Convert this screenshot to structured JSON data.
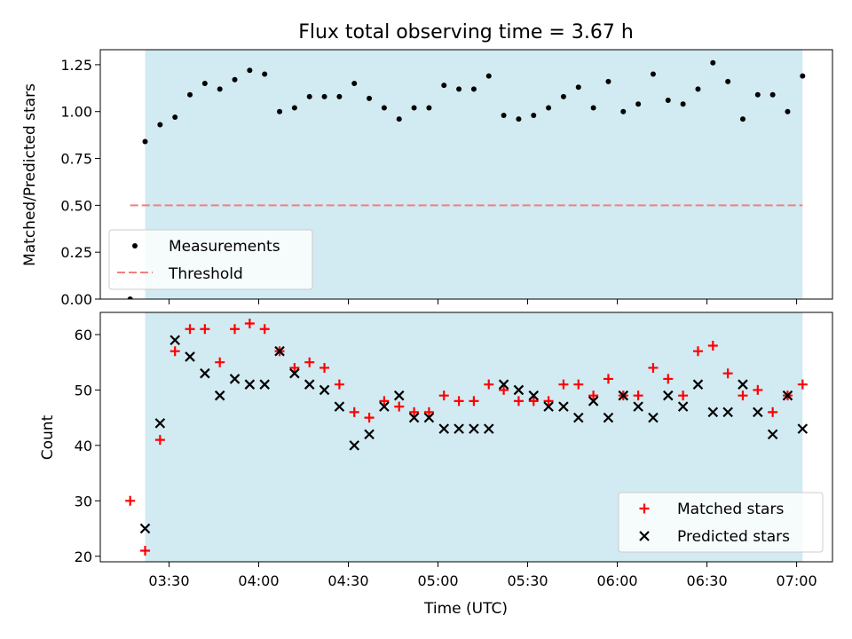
{
  "chart_data": [
    {
      "type": "scatter",
      "title": "Flux total observing time = 3.67 h",
      "ylabel": "Matched/Predicted stars",
      "xlabel": "",
      "ylim": [
        0.0,
        1.33
      ],
      "yticks": [
        0.0,
        0.25,
        0.5,
        0.75,
        1.0,
        1.25
      ],
      "ytick_labels": [
        "0.00",
        "0.25",
        "0.50",
        "0.75",
        "1.00",
        "1.25"
      ],
      "grid": false,
      "legend_placement": "lower-left",
      "shaded_interval": {
        "start": "03:22",
        "end": "07:02",
        "color": "#add8e6"
      },
      "series": [
        {
          "name": "Measurements",
          "marker": "dot",
          "color": "#000000",
          "x": [
            "03:17",
            "03:22",
            "03:27",
            "03:32",
            "03:37",
            "03:42",
            "03:47",
            "03:52",
            "03:57",
            "04:02",
            "04:07",
            "04:12",
            "04:17",
            "04:22",
            "04:27",
            "04:32",
            "04:37",
            "04:42",
            "04:47",
            "04:52",
            "04:57",
            "05:02",
            "05:07",
            "05:12",
            "05:17",
            "05:22",
            "05:27",
            "05:32",
            "05:37",
            "05:42",
            "05:47",
            "05:52",
            "05:57",
            "06:02",
            "06:07",
            "06:12",
            "06:17",
            "06:22",
            "06:27",
            "06:32",
            "06:37",
            "06:42",
            "06:47",
            "06:52",
            "06:57",
            "07:02"
          ],
          "y": [
            0.0,
            0.84,
            0.93,
            0.97,
            1.09,
            1.15,
            1.12,
            1.17,
            1.22,
            1.2,
            1.0,
            1.02,
            1.08,
            1.08,
            1.08,
            1.15,
            1.07,
            1.02,
            0.96,
            1.02,
            1.02,
            1.14,
            1.12,
            1.12,
            1.19,
            0.98,
            0.96,
            0.98,
            1.02,
            1.08,
            1.13,
            1.02,
            1.16,
            1.0,
            1.04,
            1.2,
            1.06,
            1.04,
            1.12,
            1.26,
            1.16,
            0.96,
            1.09,
            1.09,
            1.0,
            1.19
          ]
        },
        {
          "name": "Threshold",
          "marker": "dashed-line",
          "color": "#f08080",
          "x": [
            "03:17",
            "07:02"
          ],
          "y": [
            0.5,
            0.5
          ]
        }
      ]
    },
    {
      "type": "scatter",
      "title": "",
      "xlabel": "Time (UTC)",
      "ylabel": "Count",
      "ylim": [
        19,
        64
      ],
      "yticks": [
        20,
        30,
        40,
        50,
        60
      ],
      "ytick_labels": [
        "20",
        "30",
        "40",
        "50",
        "60"
      ],
      "xlim": [
        "03:07",
        "07:12"
      ],
      "xticks": [
        "03:30",
        "04:00",
        "04:30",
        "05:00",
        "05:30",
        "06:00",
        "06:30",
        "07:00"
      ],
      "grid": false,
      "legend_placement": "lower-right",
      "shaded_interval": {
        "start": "03:22",
        "end": "07:02",
        "color": "#add8e6"
      },
      "series": [
        {
          "name": "Matched stars",
          "marker": "plus",
          "color": "#ff0000",
          "x": [
            "03:17",
            "03:22",
            "03:27",
            "03:32",
            "03:37",
            "03:42",
            "03:47",
            "03:52",
            "03:57",
            "04:02",
            "04:07",
            "04:12",
            "04:17",
            "04:22",
            "04:27",
            "04:32",
            "04:37",
            "04:42",
            "04:47",
            "04:52",
            "04:57",
            "05:02",
            "05:07",
            "05:12",
            "05:17",
            "05:22",
            "05:27",
            "05:32",
            "05:37",
            "05:42",
            "05:47",
            "05:52",
            "05:57",
            "06:02",
            "06:07",
            "06:12",
            "06:17",
            "06:22",
            "06:27",
            "06:32",
            "06:37",
            "06:42",
            "06:47",
            "06:52",
            "06:57",
            "07:02"
          ],
          "y": [
            30,
            21,
            41,
            57,
            61,
            61,
            55,
            61,
            62,
            61,
            57,
            54,
            55,
            54,
            51,
            46,
            45,
            48,
            47,
            46,
            46,
            49,
            48,
            48,
            51,
            50,
            48,
            48,
            48,
            51,
            51,
            49,
            52,
            49,
            49,
            54,
            52,
            49,
            57,
            58,
            53,
            49,
            50,
            46,
            49,
            51
          ]
        },
        {
          "name": "Predicted stars",
          "marker": "x",
          "color": "#000000",
          "x": [
            "03:22",
            "03:27",
            "03:32",
            "03:37",
            "03:42",
            "03:47",
            "03:52",
            "03:57",
            "04:02",
            "04:07",
            "04:12",
            "04:17",
            "04:22",
            "04:27",
            "04:32",
            "04:37",
            "04:42",
            "04:47",
            "04:52",
            "04:57",
            "05:02",
            "05:07",
            "05:12",
            "05:17",
            "05:22",
            "05:27",
            "05:32",
            "05:37",
            "05:42",
            "05:47",
            "05:52",
            "05:57",
            "06:02",
            "06:07",
            "06:12",
            "06:17",
            "06:22",
            "06:27",
            "06:32",
            "06:37",
            "06:42",
            "06:47",
            "06:52",
            "06:57",
            "07:02"
          ],
          "y": [
            25,
            44,
            59,
            56,
            53,
            49,
            52,
            51,
            51,
            57,
            53,
            51,
            50,
            47,
            40,
            42,
            47,
            49,
            45,
            45,
            43,
            43,
            43,
            43,
            51,
            50,
            49,
            47,
            47,
            45,
            48,
            45,
            49,
            47,
            45,
            49,
            47,
            51,
            46,
            46,
            51,
            46,
            42,
            49,
            43
          ]
        }
      ]
    }
  ]
}
